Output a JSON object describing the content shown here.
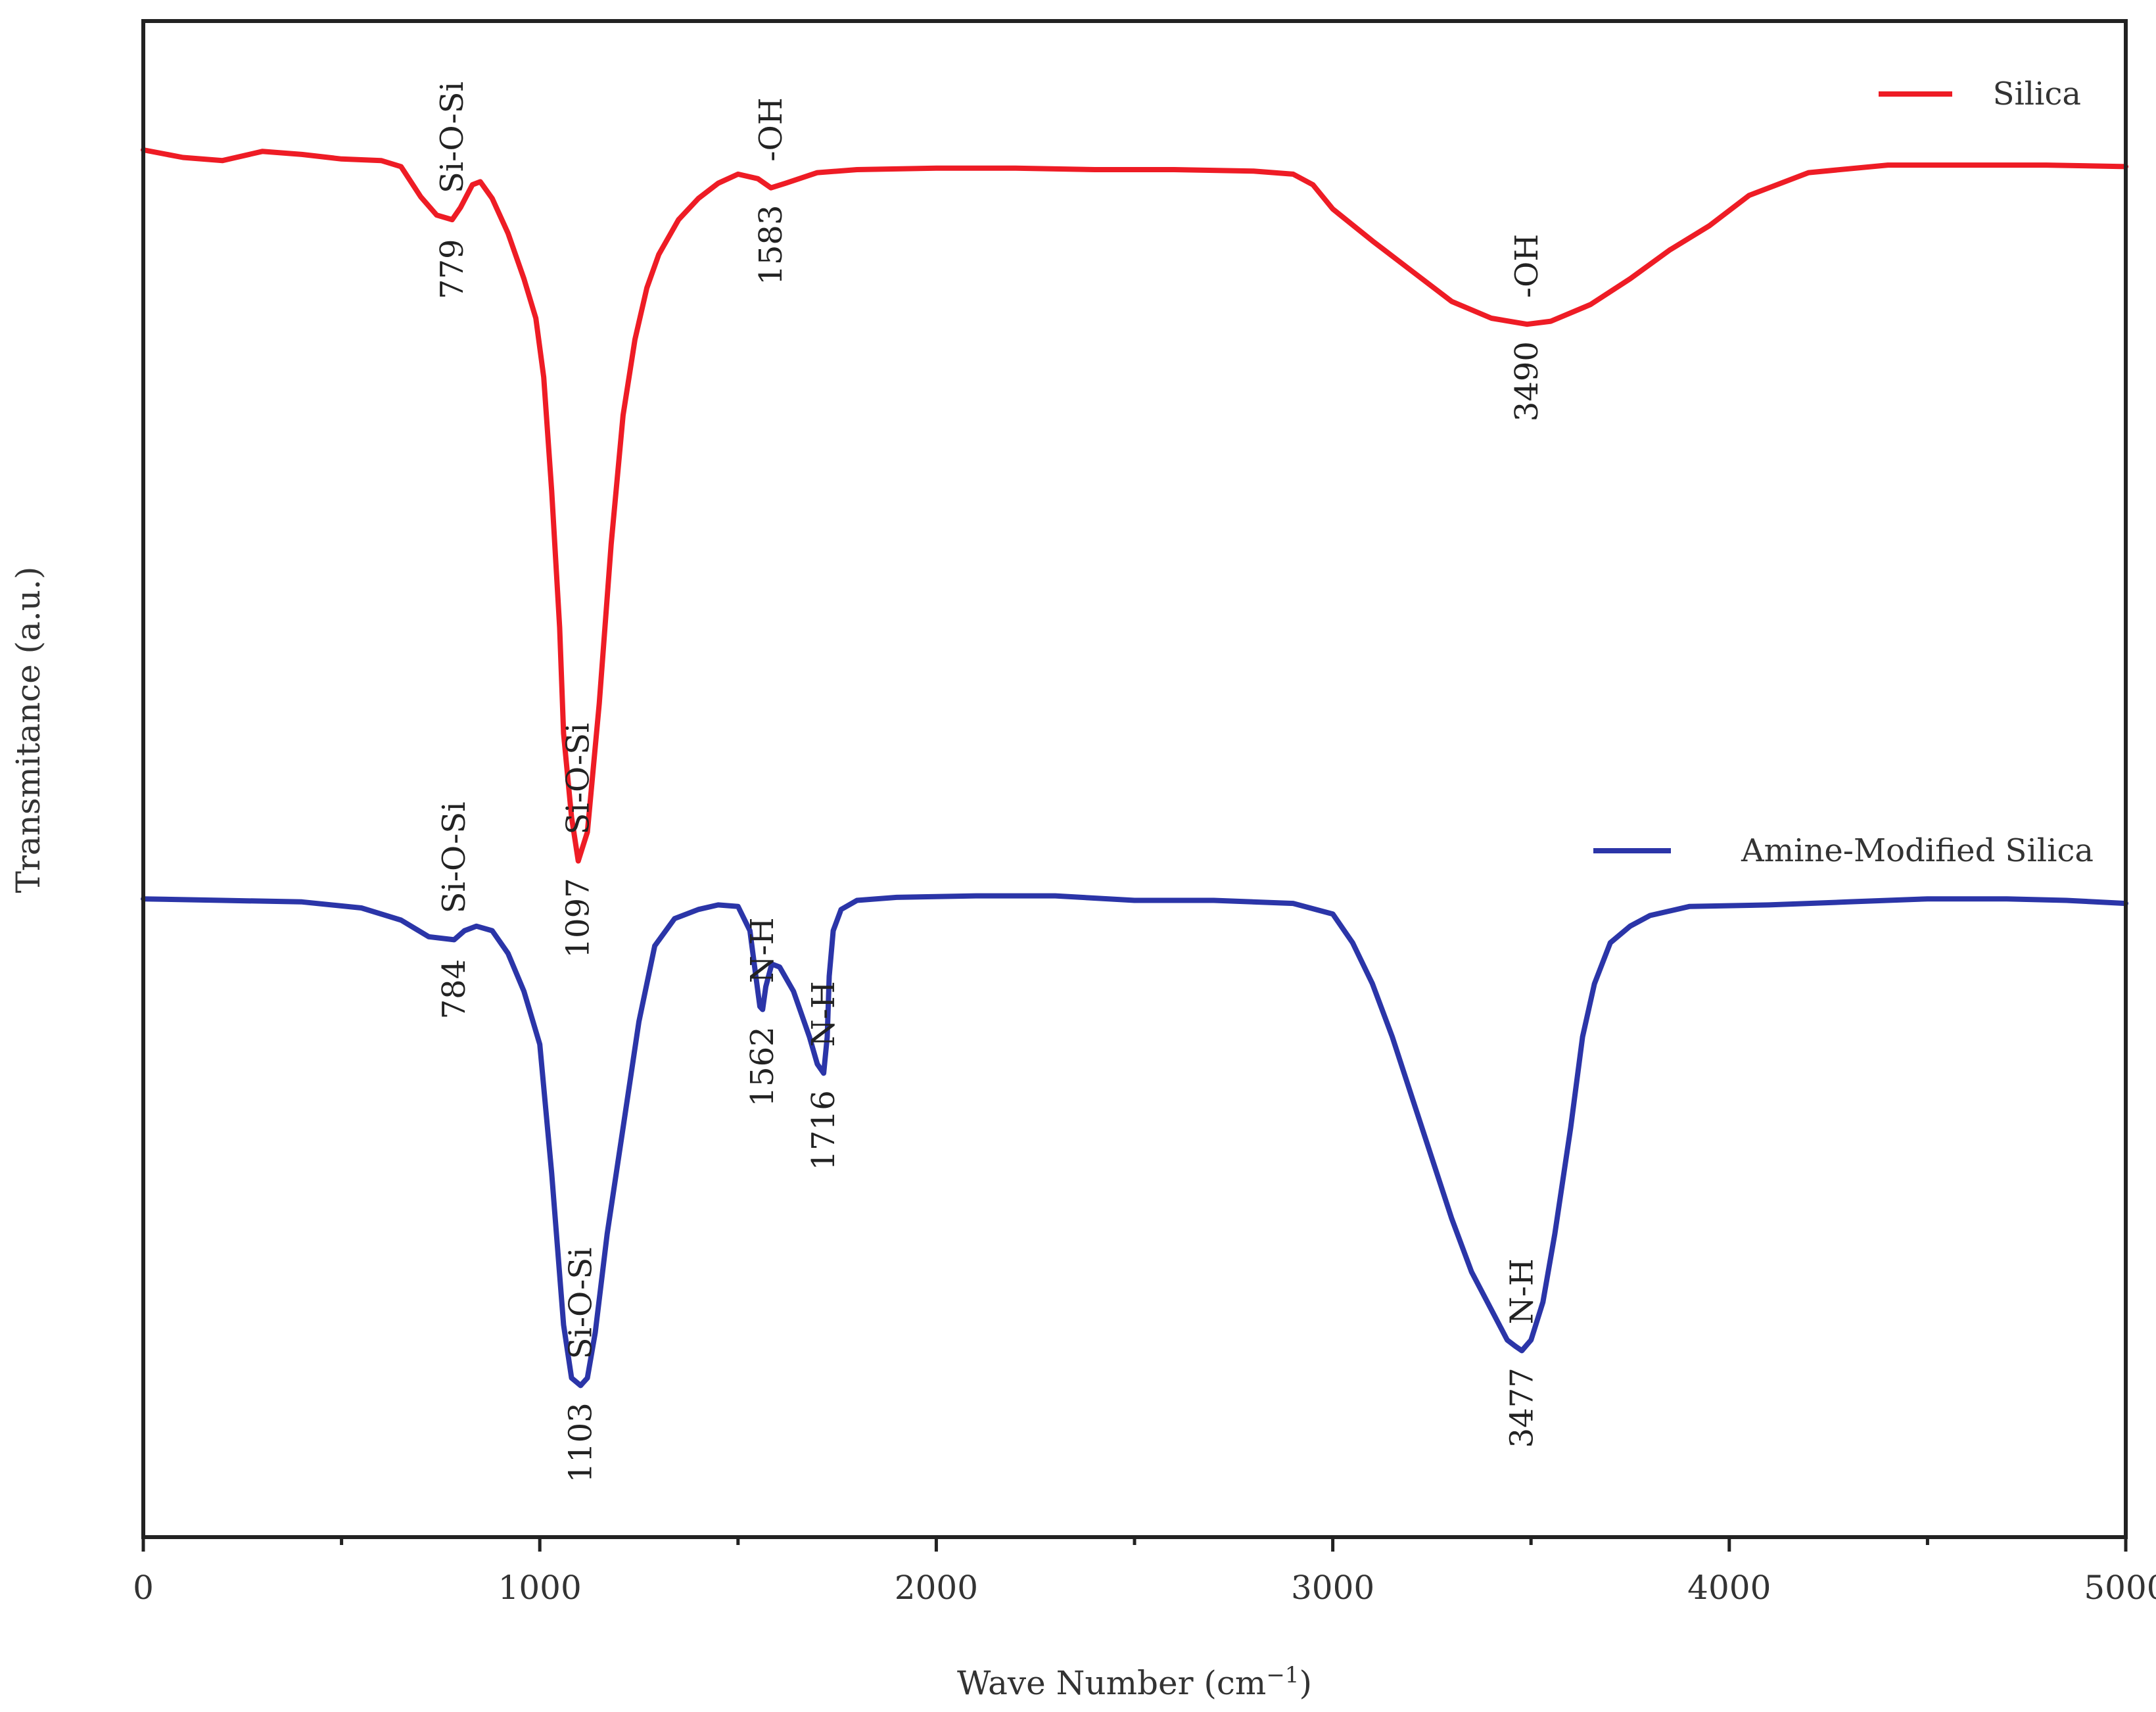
{
  "chart_data": {
    "type": "line",
    "title": "",
    "xlabel": "Wave Number (cm",
    "xlabel_sup": "−1",
    "xlabel_close": ")",
    "ylabel": "Transmitance (a.u.)",
    "xlim": [
      0,
      5000
    ],
    "ylim": [
      0,
      100
    ],
    "xticks": [
      0,
      1000,
      2000,
      3000,
      4000,
      5000
    ],
    "xtick_labels": [
      "0",
      "1000",
      "2000",
      "3000",
      "4000",
      "5000"
    ],
    "minor_xticks": [
      500,
      1500,
      2500,
      3500,
      4500
    ],
    "grid": false,
    "legend_position": "top-right",
    "series": [
      {
        "name": "Silica",
        "color": "#ee1c25",
        "x": [
          0,
          100,
          200,
          300,
          400,
          500,
          600,
          650,
          700,
          740,
          779,
          800,
          830,
          850,
          880,
          920,
          960,
          990,
          1010,
          1030,
          1050,
          1060,
          1080,
          1097,
          1120,
          1150,
          1180,
          1210,
          1240,
          1270,
          1300,
          1350,
          1400,
          1450,
          1500,
          1550,
          1583,
          1620,
          1700,
          1800,
          2000,
          2200,
          2400,
          2600,
          2800,
          2900,
          2950,
          3000,
          3100,
          3200,
          3300,
          3400,
          3490,
          3550,
          3650,
          3750,
          3850,
          3950,
          4050,
          4200,
          4400,
          4600,
          4800,
          5000
        ],
        "y": [
          91.5,
          91.0,
          90.8,
          91.4,
          91.2,
          90.9,
          90.8,
          90.4,
          88.4,
          87.2,
          86.9,
          87.7,
          89.2,
          89.4,
          88.3,
          86.0,
          83.0,
          80.4,
          76.5,
          69.0,
          60.0,
          53.0,
          47.5,
          44.6,
          46.5,
          55.0,
          65.5,
          74.0,
          79.0,
          82.4,
          84.6,
          86.9,
          88.3,
          89.3,
          89.9,
          89.6,
          89.0,
          89.3,
          90.0,
          90.2,
          90.3,
          90.3,
          90.2,
          90.2,
          90.1,
          89.9,
          89.2,
          87.6,
          85.5,
          83.5,
          81.5,
          80.4,
          80.0,
          80.2,
          81.3,
          83.0,
          84.9,
          86.5,
          88.5,
          90.0,
          90.5,
          90.5,
          90.5,
          90.4
        ]
      },
      {
        "name": "Amine-Modified Silica",
        "color": "#2b35a8",
        "x": [
          0,
          200,
          400,
          550,
          650,
          720,
          784,
          810,
          840,
          880,
          920,
          960,
          1000,
          1030,
          1060,
          1080,
          1103,
          1120,
          1140,
          1170,
          1210,
          1250,
          1290,
          1340,
          1400,
          1450,
          1500,
          1530,
          1545,
          1555,
          1562,
          1570,
          1585,
          1605,
          1640,
          1680,
          1700,
          1716,
          1725,
          1730,
          1740,
          1760,
          1800,
          1900,
          2100,
          2300,
          2500,
          2700,
          2900,
          3000,
          3050,
          3100,
          3150,
          3200,
          3250,
          3300,
          3350,
          3400,
          3440,
          3460,
          3477,
          3500,
          3530,
          3560,
          3600,
          3630,
          3660,
          3700,
          3750,
          3800,
          3900,
          4100,
          4300,
          4500,
          4700,
          4850,
          5000
        ],
        "y": [
          42.1,
          42.0,
          41.9,
          41.5,
          40.7,
          39.6,
          39.4,
          40.0,
          40.3,
          40.0,
          38.5,
          36.0,
          32.5,
          24.0,
          14.0,
          10.5,
          10.0,
          10.5,
          13.5,
          20.0,
          27.0,
          34.0,
          39.0,
          40.8,
          41.4,
          41.7,
          41.6,
          40.0,
          37.0,
          35.0,
          34.8,
          36.3,
          37.8,
          37.6,
          36.0,
          33.0,
          31.2,
          30.6,
          33.0,
          37.0,
          40.0,
          41.4,
          42.0,
          42.2,
          42.3,
          42.3,
          42.0,
          42.0,
          41.8,
          41.1,
          39.2,
          36.5,
          33.0,
          29.0,
          25.0,
          21.0,
          17.5,
          15.0,
          13.0,
          12.6,
          12.3,
          13.0,
          15.5,
          20.0,
          27.0,
          33.0,
          36.5,
          39.2,
          40.3,
          41.0,
          41.6,
          41.7,
          41.9,
          42.1,
          42.1,
          42.0,
          41.8
        ]
      }
    ],
    "annotations": [
      {
        "text": "779",
        "series": 0,
        "x": 779,
        "anchor": "below"
      },
      {
        "text": "Si-O-Si",
        "series": 0,
        "x": 779,
        "anchor": "above"
      },
      {
        "text": "1097",
        "series": 0,
        "x": 1097,
        "anchor": "below"
      },
      {
        "text": "Si-O-Si",
        "series": 0,
        "x": 1097,
        "anchor": "above"
      },
      {
        "text": "1583",
        "series": 0,
        "x": 1583,
        "anchor": "below"
      },
      {
        "text": "-OH",
        "series": 0,
        "x": 1583,
        "anchor": "above"
      },
      {
        "text": "3490",
        "series": 0,
        "x": 3490,
        "anchor": "below"
      },
      {
        "text": "-OH",
        "series": 0,
        "x": 3490,
        "anchor": "above"
      },
      {
        "text": "784",
        "series": 1,
        "x": 784,
        "anchor": "below"
      },
      {
        "text": "Si-O-Si",
        "series": 1,
        "x": 784,
        "anchor": "above"
      },
      {
        "text": "1103",
        "series": 1,
        "x": 1103,
        "anchor": "below"
      },
      {
        "text": "Si-O-Si",
        "series": 1,
        "x": 1103,
        "anchor": "above"
      },
      {
        "text": "1562",
        "series": 1,
        "x": 1562,
        "anchor": "below"
      },
      {
        "text": "N-H",
        "series": 1,
        "x": 1562,
        "anchor": "above"
      },
      {
        "text": "1716",
        "series": 1,
        "x": 1716,
        "anchor": "below"
      },
      {
        "text": "N-H",
        "series": 1,
        "x": 1716,
        "anchor": "above"
      },
      {
        "text": "3477",
        "series": 1,
        "x": 3477,
        "anchor": "below"
      },
      {
        "text": "N-H",
        "series": 1,
        "x": 3477,
        "anchor": "above"
      }
    ]
  }
}
